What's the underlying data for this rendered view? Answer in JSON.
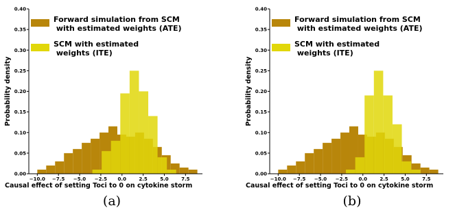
{
  "colors": {
    "ate": "#b8860b",
    "ite": "#e1d70a",
    "axis": "#000000"
  },
  "panels": [
    {
      "caption": "(a)",
      "chart_data": {
        "type": "bar",
        "xlabel": "Causal effect of setting Toci to 0 on cytokine storm",
        "ylabel": "Probability density",
        "xlim": [
          -11,
          9.5
        ],
        "ylim": [
          0,
          0.4
        ],
        "xticks": [
          -10.0,
          -7.5,
          -5.0,
          -2.5,
          0.0,
          2.5,
          5.0,
          7.5
        ],
        "xtick_labels": [
          "−10.0",
          "−7.5",
          "−5.0",
          "−2.5",
          "0.0",
          "2.5",
          "5.0",
          "7.5"
        ],
        "yticks": [
          0.0,
          0.05,
          0.1,
          0.15,
          0.2,
          0.25,
          0.3,
          0.35,
          0.4
        ],
        "ytick_labels": [
          "0.00",
          "0.05",
          "0.10",
          "0.15",
          "0.20",
          "0.25",
          "0.30",
          "0.35",
          "0.40"
        ],
        "grid": false,
        "legend_position": "top-left",
        "series": [
          {
            "name": "Forward simulation from SCM\n with estimated weights (ATE)",
            "color_key": "ate",
            "bins": [
              -10,
              -8.95,
              -7.9,
              -6.85,
              -5.8,
              -4.75,
              -3.7,
              -2.65,
              -1.6,
              -0.55,
              0.5,
              1.55,
              2.6,
              3.65,
              4.7,
              5.75,
              6.8,
              7.85,
              8.9
            ],
            "values": [
              0.01,
              0.02,
              0.03,
              0.05,
              0.06,
              0.075,
              0.085,
              0.1,
              0.115,
              0.095,
              0.09,
              0.1,
              0.085,
              0.065,
              0.045,
              0.025,
              0.015,
              0.01
            ]
          },
          {
            "name": "SCM with estimated\n weights (ITE)",
            "color_key": "ite",
            "bins": [
              -3.5,
              -2.4,
              -1.3,
              -0.2,
              0.9,
              2.0,
              3.1,
              4.2,
              5.3,
              6.4
            ],
            "values": [
              0.01,
              0.055,
              0.08,
              0.195,
              0.25,
              0.2,
              0.14,
              0.04,
              0.01
            ]
          }
        ]
      }
    },
    {
      "caption": "(b)",
      "chart_data": {
        "type": "bar",
        "xlabel": "Causal effect of setting Toci to 0 on cytokine storm",
        "ylabel": "Probability density",
        "xlim": [
          -11,
          9.5
        ],
        "ylim": [
          0,
          0.4
        ],
        "xticks": [
          -10.0,
          -7.5,
          -5.0,
          -2.5,
          0.0,
          2.5,
          5.0,
          7.5
        ],
        "xtick_labels": [
          "−10.0",
          "−7.5",
          "−5.0",
          "−2.5",
          "0.0",
          "2.5",
          "5.0",
          "7.5"
        ],
        "yticks": [
          0.0,
          0.05,
          0.1,
          0.15,
          0.2,
          0.25,
          0.3,
          0.35,
          0.4
        ],
        "ytick_labels": [
          "0.00",
          "0.05",
          "0.10",
          "0.15",
          "0.20",
          "0.25",
          "0.30",
          "0.35",
          "0.40"
        ],
        "grid": false,
        "legend_position": "top-left",
        "series": [
          {
            "name": "Forward simulation from SCM\n with estimated weights (ATE)",
            "color_key": "ate",
            "bins": [
              -10,
              -8.95,
              -7.9,
              -6.85,
              -5.8,
              -4.75,
              -3.7,
              -2.65,
              -1.6,
              -0.55,
              0.5,
              1.55,
              2.6,
              3.65,
              4.7,
              5.75,
              6.8,
              7.85,
              8.9
            ],
            "values": [
              0.01,
              0.02,
              0.03,
              0.05,
              0.06,
              0.075,
              0.085,
              0.1,
              0.115,
              0.095,
              0.09,
              0.1,
              0.085,
              0.065,
              0.045,
              0.025,
              0.015,
              0.01
            ]
          },
          {
            "name": "SCM with estimated\n weights (ITE)",
            "color_key": "ite",
            "bins": [
              -2.0,
              -0.9,
              0.2,
              1.3,
              2.4,
              3.5,
              4.6,
              5.7,
              6.8
            ],
            "values": [
              0.01,
              0.04,
              0.19,
              0.25,
              0.19,
              0.12,
              0.03,
              0.01
            ]
          }
        ]
      }
    }
  ]
}
